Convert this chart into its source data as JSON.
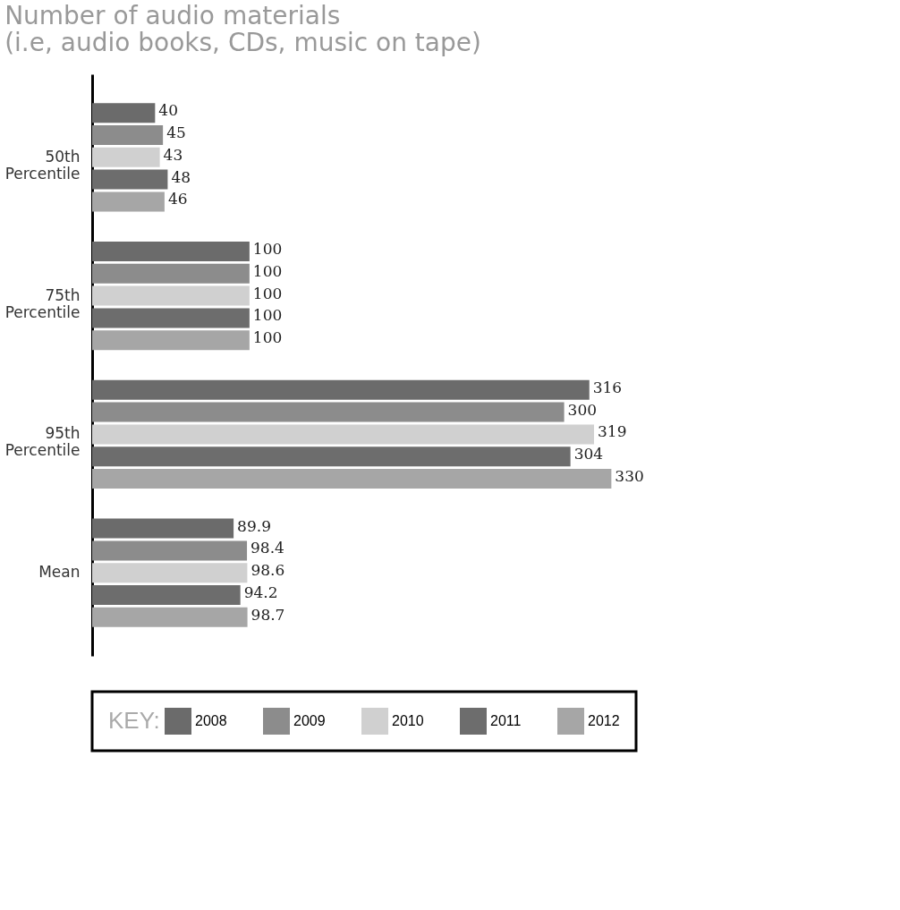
{
  "chart_data": {
    "type": "bar",
    "orientation": "horizontal",
    "title": [
      "Number of audio materials",
      "(i.e, audio books, CDs, music on tape)"
    ],
    "categories": [
      "50th Percentile",
      "75th Percentile",
      "95th Percentile",
      "Mean"
    ],
    "series": [
      {
        "name": "2008",
        "color": "#6b6b6b",
        "values": [
          40,
          100,
          316,
          89.9
        ]
      },
      {
        "name": "2009",
        "color": "#8c8c8c",
        "values": [
          45,
          100,
          300,
          98.4
        ]
      },
      {
        "name": "2010",
        "color": "#d0d0d0",
        "values": [
          43,
          100,
          319,
          98.6
        ]
      },
      {
        "name": "2011",
        "color": "#6d6d6d",
        "values": [
          48,
          100,
          304,
          94.2
        ]
      },
      {
        "name": "2012",
        "color": "#a6a6a6",
        "values": [
          46,
          100,
          330,
          98.7
        ]
      }
    ],
    "data_labels": true,
    "legend": "bottom",
    "legend_title": "KEY:",
    "grid": false
  }
}
